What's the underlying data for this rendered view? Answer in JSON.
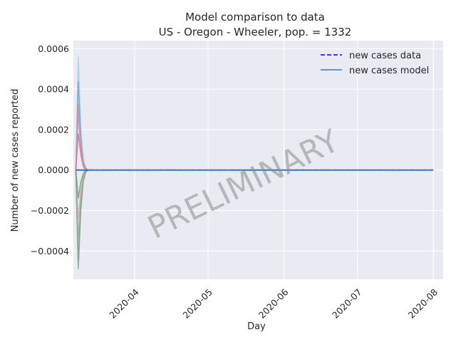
{
  "chart_data": {
    "type": "line",
    "title": "Model comparison to data",
    "subtitle": "US - Oregon - Wheeler, pop. = 1332",
    "xlabel": "Day",
    "ylabel": "Number of new cases reported",
    "x_range": [
      "2020-03-07",
      "2020-08-05"
    ],
    "ylim": [
      -0.00054,
      0.00064
    ],
    "x_ticks": [
      {
        "date": "2020-04-01",
        "label": "2020-04"
      },
      {
        "date": "2020-05-01",
        "label": "2020-05"
      },
      {
        "date": "2020-06-01",
        "label": "2020-06"
      },
      {
        "date": "2020-07-01",
        "label": "2020-07"
      },
      {
        "date": "2020-08-01",
        "label": "2020-08"
      }
    ],
    "y_ticks": [
      {
        "value": 0.0006,
        "label": "0.0006"
      },
      {
        "value": 0.0004,
        "label": "0.0004"
      },
      {
        "value": 0.0002,
        "label": "0.0002"
      },
      {
        "value": 0.0,
        "label": "0.0000"
      },
      {
        "value": -0.0002,
        "label": "−0.0002"
      },
      {
        "value": -0.0004,
        "label": "−0.0004"
      }
    ],
    "grid": true,
    "legend_position": "top-right",
    "watermark": "PRELIMINARY",
    "series": [
      {
        "name": "new cases data",
        "style": "dashed",
        "color": "#0000ee",
        "x": [
          "2020-03-08",
          "2020-08-01"
        ],
        "values": [
          0,
          0
        ]
      },
      {
        "name": "new cases model",
        "style": "solid",
        "color": "#3a78b5",
        "x": [
          "2020-03-08",
          "2020-03-09",
          "2020-03-10",
          "2020-03-12",
          "2020-03-15",
          "2020-04-01",
          "2020-08-01"
        ],
        "values": [
          0.0,
          0.0,
          0.0,
          0.0,
          0.0,
          0.0,
          0.0
        ]
      }
    ],
    "ensemble": [
      {
        "color": "#9fd3e6",
        "x": [
          "2020-03-08",
          "2020-03-09",
          "2020-03-10",
          "2020-03-11",
          "2020-03-12",
          "2020-03-13",
          "2020-03-15"
        ],
        "values": [
          0.0,
          0.00056,
          0.00022,
          6e-05,
          1e-05,
          0.0,
          0.0
        ]
      },
      {
        "color": "#7aa6c9",
        "x": [
          "2020-03-08",
          "2020-03-09",
          "2020-03-10",
          "2020-03-11",
          "2020-03-12",
          "2020-03-13",
          "2020-03-15"
        ],
        "values": [
          0.0,
          0.00044,
          0.00016,
          4e-05,
          1e-05,
          0.0,
          0.0
        ]
      },
      {
        "color": "#c98e8e",
        "x": [
          "2020-03-08",
          "2020-03-09",
          "2020-03-10",
          "2020-03-11",
          "2020-03-12",
          "2020-03-13",
          "2020-03-15"
        ],
        "values": [
          0.0,
          0.00033,
          0.00012,
          3e-05,
          1e-05,
          0.0,
          0.0
        ]
      },
      {
        "color": "#b89ad1",
        "x": [
          "2020-03-08",
          "2020-03-09",
          "2020-03-10",
          "2020-03-11",
          "2020-03-12",
          "2020-03-13",
          "2020-03-15"
        ],
        "values": [
          0.0,
          0.00028,
          0.0001,
          3e-05,
          0.0,
          0.0,
          0.0
        ]
      },
      {
        "color": "#d97a7a",
        "x": [
          "2020-03-08",
          "2020-03-09",
          "2020-03-10",
          "2020-03-11",
          "2020-03-12",
          "2020-03-13",
          "2020-03-15"
        ],
        "values": [
          0.0,
          0.00018,
          8e-05,
          2e-05,
          0.0,
          0.0,
          0.0
        ]
      },
      {
        "color": "#e0b0b0",
        "x": [
          "2020-03-08",
          "2020-03-09",
          "2020-03-10",
          "2020-03-11",
          "2020-03-12",
          "2020-03-13",
          "2020-03-15"
        ],
        "values": [
          0.0,
          -0.00024,
          -0.0001,
          -3e-05,
          0.0,
          0.0,
          0.0
        ]
      },
      {
        "color": "#7fae8c",
        "x": [
          "2020-03-08",
          "2020-03-09",
          "2020-03-10",
          "2020-03-11",
          "2020-03-12",
          "2020-03-13",
          "2020-03-15"
        ],
        "values": [
          0.0,
          -0.00049,
          -0.0002,
          -6e-05,
          -1e-05,
          0.0,
          0.0
        ]
      },
      {
        "color": "#8c9a8c",
        "x": [
          "2020-03-08",
          "2020-03-09",
          "2020-03-10",
          "2020-03-11",
          "2020-03-12",
          "2020-03-13",
          "2020-03-15"
        ],
        "values": [
          0.0,
          -0.00045,
          -0.00018,
          -5e-05,
          -1e-05,
          0.0,
          0.0
        ]
      },
      {
        "color": "#a0b0a0",
        "x": [
          "2020-03-08",
          "2020-03-09",
          "2020-03-10",
          "2020-03-11",
          "2020-03-12",
          "2020-03-13",
          "2020-03-15"
        ],
        "values": [
          0.0,
          -0.00034,
          -0.00013,
          -4e-05,
          0.0,
          0.0,
          0.0
        ]
      },
      {
        "color": "#6f9f7f",
        "x": [
          "2020-03-08",
          "2020-03-09",
          "2020-03-10",
          "2020-03-11",
          "2020-03-12",
          "2020-03-13",
          "2020-03-15"
        ],
        "values": [
          0.0,
          -0.00014,
          -6e-05,
          -2e-05,
          0.0,
          0.0,
          0.0
        ]
      }
    ]
  }
}
